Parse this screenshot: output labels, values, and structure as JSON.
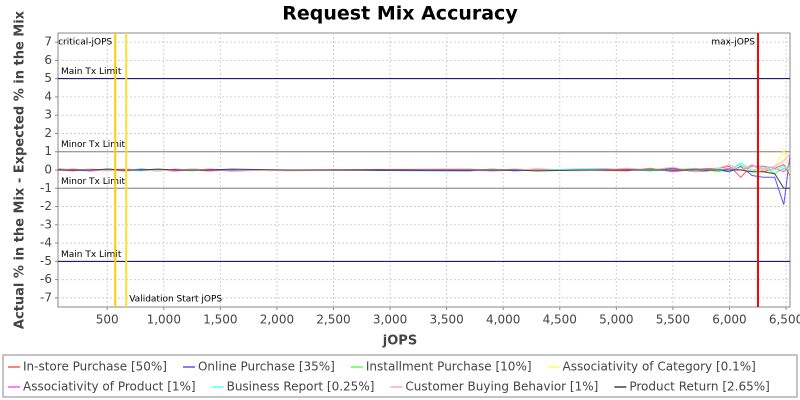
{
  "chart_data": {
    "type": "line",
    "title": "Request Mix Accuracy",
    "xlabel": "jOPS",
    "ylabel": "Actual % in the Mix - Expected % in the Mix",
    "x": [
      65,
      200,
      350,
      500,
      650,
      800,
      950,
      1100,
      1250,
      1400,
      1600,
      2100,
      3700,
      3900,
      4100,
      4300,
      4700,
      5100,
      5300,
      5500,
      5700,
      5900,
      6000,
      6100,
      6200,
      6300,
      6400,
      6480,
      6535
    ],
    "series": [
      {
        "name": "In-store Purchase [50%]",
        "color": "#ff5555",
        "values": [
          0,
          -0.05,
          0.05,
          0,
          -0.05,
          0,
          -0.05,
          0.05,
          0,
          -0.05,
          0,
          0,
          0.05,
          -0.05,
          0,
          0.05,
          0,
          -0.05,
          0.1,
          -0.1,
          0.05,
          0.1,
          0.2,
          -0.4,
          0.3,
          -0.1,
          0.1,
          0.3,
          -0.3
        ]
      },
      {
        "name": "Online Purchase [35%]",
        "color": "#5555ff",
        "values": [
          0.05,
          0,
          -0.05,
          0.05,
          0,
          0.05,
          0,
          -0.05,
          0.05,
          0,
          -0.05,
          0,
          -0.05,
          0.05,
          -0.05,
          0,
          0.05,
          0.05,
          -0.05,
          0.1,
          -0.1,
          0,
          -0.1,
          0.2,
          -0.3,
          -0.4,
          -0.4,
          -1.9,
          0.8
        ]
      },
      {
        "name": "Installment Purchase [10%]",
        "color": "#55ff55",
        "values": [
          0,
          0.05,
          0,
          -0.05,
          0.05,
          0,
          0.05,
          0,
          -0.05,
          0.05,
          0,
          0,
          0,
          0.05,
          0,
          -0.05,
          0,
          0,
          0.05,
          0,
          0.1,
          -0.1,
          0.1,
          0.3,
          -0.1,
          0.2,
          -0.2,
          0.1,
          0
        ]
      },
      {
        "name": "Associativity of Category [0.1%]",
        "color": "#ffff55",
        "values": [
          0,
          0,
          0,
          0,
          0,
          0,
          0,
          0,
          0,
          0,
          0,
          0,
          0,
          0,
          0,
          0,
          0,
          0,
          0,
          0,
          0,
          0,
          0,
          0,
          0,
          0,
          0.1,
          1.1,
          -0.2
        ]
      },
      {
        "name": "Associativity of Product [1%]",
        "color": "#ff55ff",
        "values": [
          0,
          0.05,
          -0.05,
          0,
          0.05,
          0,
          0,
          -0.05,
          0,
          0.05,
          0,
          0,
          0,
          -0.05,
          0.05,
          0,
          0,
          0.05,
          0,
          -0.05,
          0.05,
          0,
          0.1,
          0,
          0.2,
          0.2,
          0.1,
          -0.1,
          0.3
        ]
      },
      {
        "name": "Business Report [0.25%]",
        "color": "#55ffff",
        "values": [
          0,
          0,
          0.05,
          0,
          0,
          -0.05,
          0,
          0,
          0.05,
          0,
          0,
          0,
          0,
          0,
          0,
          0,
          0.05,
          0,
          -0.05,
          0,
          0,
          0.05,
          0,
          0.4,
          0,
          0.1,
          0,
          0.2,
          0
        ]
      },
      {
        "name": "Customer Buying Behavior [1%]",
        "color": "#ffafaf",
        "values": [
          0.1,
          0,
          0.05,
          -0.05,
          0.05,
          0,
          -0.05,
          0,
          0.05,
          0,
          0,
          -0.05,
          0.05,
          0,
          0.05,
          0,
          -0.05,
          0.1,
          0,
          0.15,
          -0.1,
          0.1,
          0.3,
          0,
          0.3,
          0,
          0.2,
          0.5,
          0.9
        ]
      },
      {
        "name": "Product Return [2.65%]",
        "color": "#404040",
        "values": [
          0,
          0,
          0,
          0.05,
          0,
          0,
          0.05,
          0,
          0,
          0,
          0.05,
          0,
          0,
          0,
          0,
          -0.05,
          0,
          0,
          0,
          0,
          0,
          0,
          0,
          0,
          -0.1,
          -0.1,
          -0.2,
          -1.0,
          -1.0
        ]
      }
    ],
    "xlim": [
      65,
      6535
    ],
    "ylim": [
      -7.5,
      7.5
    ],
    "xticks": [
      500,
      {
        "value": 1000,
        "label": "1,000"
      },
      {
        "value": 1500,
        "label": "1,500"
      },
      {
        "value": 2000,
        "label": "2,000"
      },
      {
        "value": 2500,
        "label": "2,500"
      },
      {
        "value": 3000,
        "label": "3,000"
      },
      {
        "value": 3500,
        "label": "3,500"
      },
      {
        "value": 4000,
        "label": "4,000"
      },
      {
        "value": 4500,
        "label": "4,500"
      },
      {
        "value": 5000,
        "label": "5,000"
      },
      {
        "value": 5500,
        "label": "5,500"
      },
      {
        "value": 6000,
        "label": "6,000"
      },
      {
        "value": 6500,
        "label": "6,500"
      }
    ],
    "yticks": [
      -7,
      -6,
      -5,
      -4,
      -3,
      -2,
      -1,
      0,
      1,
      2,
      3,
      4,
      5,
      6,
      7
    ],
    "grid": true,
    "legend": "bottom",
    "hlines": [
      {
        "value": 5,
        "label": "Main Tx Limit",
        "color": "#000066"
      },
      {
        "value": 1,
        "label": "Minor Tx Limit",
        "color": "#808080"
      },
      {
        "value": -1,
        "label": "Minor Tx Limit",
        "color": "#808080"
      },
      {
        "value": -5,
        "label": "Main Tx Limit",
        "color": "#000066"
      }
    ],
    "vlines": [
      {
        "value": 571,
        "label": "critical-jOPS",
        "color": "#ffcc00",
        "label_position": "top-left"
      },
      {
        "value": 668,
        "label": "Validation Start jOPS",
        "color": "#ffdd33",
        "label_position": "bottom-right"
      },
      {
        "value": 6252,
        "label": "max-jOPS",
        "color": "#ff0000",
        "label_position": "top-left"
      }
    ]
  }
}
